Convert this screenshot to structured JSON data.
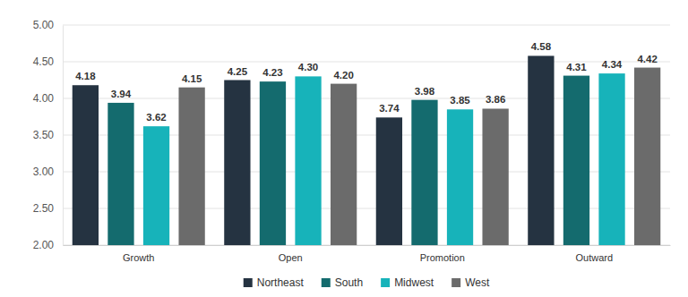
{
  "chart_data": {
    "type": "bar",
    "categories": [
      "Growth",
      "Open",
      "Promotion",
      "Outward"
    ],
    "series": [
      {
        "name": "Northeast",
        "color": "#253341",
        "values": [
          4.18,
          4.25,
          3.74,
          4.58
        ]
      },
      {
        "name": "South",
        "color": "#146b6e",
        "values": [
          3.94,
          4.23,
          3.98,
          4.31
        ]
      },
      {
        "name": "Midwest",
        "color": "#17b3ba",
        "values": [
          3.62,
          4.3,
          3.85,
          4.34
        ],
        "value_labels": [
          "3.62",
          "4.30",
          "3.85",
          "4.34"
        ]
      },
      {
        "name": "West",
        "color": "#6b6b6b",
        "values": [
          4.15,
          4.2,
          3.86,
          4.42
        ],
        "value_labels": [
          "4.15",
          "4.20",
          "3.86",
          "4.42"
        ]
      }
    ],
    "ylim": [
      2,
      5
    ],
    "yticks": [
      {
        "value": 2,
        "label": "2.00"
      },
      {
        "value": 2.5,
        "label": "2.50"
      },
      {
        "value": 3,
        "label": "3.00"
      },
      {
        "value": 3.5,
        "label": "3.50"
      },
      {
        "value": 4,
        "label": "4.00"
      },
      {
        "value": 4.5,
        "label": "4.50"
      },
      {
        "value": 5,
        "label": "5.00"
      }
    ],
    "grid": true,
    "legend": "bottom",
    "data_labels": true
  }
}
